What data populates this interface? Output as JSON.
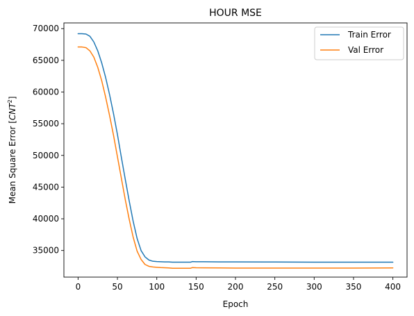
{
  "chart_data": {
    "type": "line",
    "title": "HOUR MSE",
    "xlabel": "Epoch",
    "ylabel_main": "Mean Square Error [",
    "ylabel_math": "CNT",
    "ylabel_sup": "2",
    "ylabel_close": "]",
    "xlim": [
      -18,
      418
    ],
    "ylim": [
      30800,
      70900
    ],
    "xticks": [
      0,
      50,
      100,
      150,
      200,
      250,
      300,
      350,
      400
    ],
    "yticks": [
      35000,
      40000,
      45000,
      50000,
      55000,
      60000,
      65000,
      70000
    ],
    "xtick_labels": [
      "0",
      "50",
      "100",
      "150",
      "200",
      "250",
      "300",
      "350",
      "400"
    ],
    "ytick_labels": [
      "35000",
      "40000",
      "45000",
      "50000",
      "55000",
      "60000",
      "65000",
      "70000"
    ],
    "legend_position": "upper-right",
    "grid": false,
    "series": [
      {
        "name": "Train Error",
        "color": "#1f77b4",
        "x": [
          0,
          5,
          10,
          15,
          20,
          25,
          30,
          35,
          40,
          45,
          50,
          55,
          60,
          65,
          70,
          75,
          80,
          85,
          90,
          95,
          100,
          105,
          110,
          115,
          120,
          130,
          140,
          143,
          145,
          150,
          160,
          180,
          200,
          250,
          300,
          350,
          400
        ],
        "y": [
          69200,
          69200,
          69150,
          68800,
          67900,
          66500,
          64600,
          62300,
          59600,
          56600,
          53300,
          49700,
          46200,
          42800,
          39600,
          36900,
          35000,
          34000,
          33500,
          33300,
          33250,
          33220,
          33200,
          33200,
          33150,
          33150,
          33150,
          33150,
          33250,
          33230,
          33230,
          33200,
          33200,
          33180,
          33150,
          33150,
          33150
        ]
      },
      {
        "name": "Val Error",
        "color": "#ff7f0e",
        "x": [
          0,
          5,
          10,
          15,
          20,
          25,
          30,
          35,
          40,
          45,
          50,
          55,
          60,
          65,
          70,
          75,
          80,
          85,
          90,
          95,
          100,
          105,
          110,
          115,
          120,
          130,
          140,
          143,
          145,
          150,
          160,
          180,
          200,
          250,
          300,
          350,
          400
        ],
        "y": [
          67100,
          67100,
          67000,
          66500,
          65500,
          63900,
          61800,
          59200,
          56300,
          53200,
          49800,
          46400,
          43000,
          39900,
          37100,
          34900,
          33600,
          32800,
          32500,
          32400,
          32350,
          32300,
          32280,
          32250,
          32200,
          32200,
          32200,
          32200,
          32300,
          32280,
          32270,
          32250,
          32230,
          32220,
          32230,
          32230,
          32250
        ]
      }
    ]
  }
}
